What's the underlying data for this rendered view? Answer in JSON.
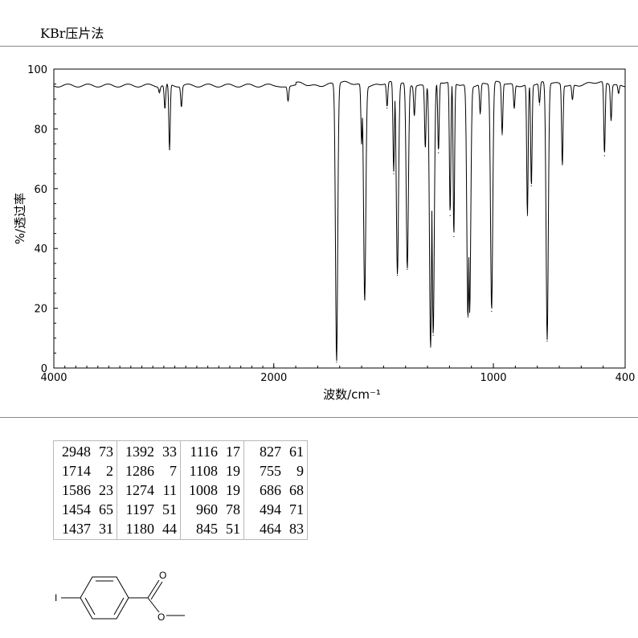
{
  "header": {
    "method_label": "KBr压片法"
  },
  "chart_data": {
    "type": "line",
    "title": "",
    "xlabel": "波数/cm⁻¹",
    "ylabel": "透过率",
    "ylabel_unit": "%",
    "xlim": [
      4000,
      400
    ],
    "ylim": [
      0,
      100
    ],
    "x_ticks": [
      4000,
      2000,
      1000,
      400
    ],
    "y_ticks": [
      0,
      20,
      40,
      60,
      80,
      100
    ],
    "baseline": 95,
    "peaks": [
      {
        "x": 3040,
        "y": 93
      },
      {
        "x": 2948,
        "y": 73
      },
      {
        "x": 2990,
        "y": 87
      },
      {
        "x": 2840,
        "y": 88
      },
      {
        "x": 1935,
        "y": 90
      },
      {
        "x": 1714,
        "y": 2
      },
      {
        "x": 1600,
        "y": 75
      },
      {
        "x": 1586,
        "y": 23
      },
      {
        "x": 1484,
        "y": 87
      },
      {
        "x": 1454,
        "y": 65
      },
      {
        "x": 1437,
        "y": 31
      },
      {
        "x": 1392,
        "y": 33
      },
      {
        "x": 1360,
        "y": 85
      },
      {
        "x": 1310,
        "y": 74
      },
      {
        "x": 1286,
        "y": 7
      },
      {
        "x": 1274,
        "y": 11
      },
      {
        "x": 1250,
        "y": 72
      },
      {
        "x": 1197,
        "y": 51
      },
      {
        "x": 1180,
        "y": 44
      },
      {
        "x": 1116,
        "y": 17
      },
      {
        "x": 1108,
        "y": 19
      },
      {
        "x": 1060,
        "y": 85
      },
      {
        "x": 1008,
        "y": 19
      },
      {
        "x": 960,
        "y": 78
      },
      {
        "x": 905,
        "y": 87
      },
      {
        "x": 845,
        "y": 51
      },
      {
        "x": 827,
        "y": 61
      },
      {
        "x": 790,
        "y": 88
      },
      {
        "x": 755,
        "y": 9
      },
      {
        "x": 686,
        "y": 68
      },
      {
        "x": 640,
        "y": 90
      },
      {
        "x": 494,
        "y": 71
      },
      {
        "x": 464,
        "y": 83
      },
      {
        "x": 430,
        "y": 92
      }
    ]
  },
  "peak_table": {
    "columns": [
      [
        [
          "2948",
          "73"
        ],
        [
          "1714",
          "2"
        ],
        [
          "1586",
          "23"
        ],
        [
          "1454",
          "65"
        ],
        [
          "1437",
          "31"
        ]
      ],
      [
        [
          "1392",
          "33"
        ],
        [
          "1286",
          "7"
        ],
        [
          "1274",
          "11"
        ],
        [
          "1197",
          "51"
        ],
        [
          "1180",
          "44"
        ]
      ],
      [
        [
          "1116",
          "17"
        ],
        [
          "1108",
          "19"
        ],
        [
          "1008",
          "19"
        ],
        [
          "960",
          "78"
        ],
        [
          "845",
          "51"
        ]
      ],
      [
        [
          "827",
          "61"
        ],
        [
          "755",
          "9"
        ],
        [
          "686",
          "68"
        ],
        [
          "494",
          "71"
        ],
        [
          "464",
          "83"
        ]
      ]
    ]
  },
  "structure": {
    "atom_labels": {
      "iodine": "I",
      "carbonyl_o": "O",
      "ester_o": "O"
    }
  }
}
